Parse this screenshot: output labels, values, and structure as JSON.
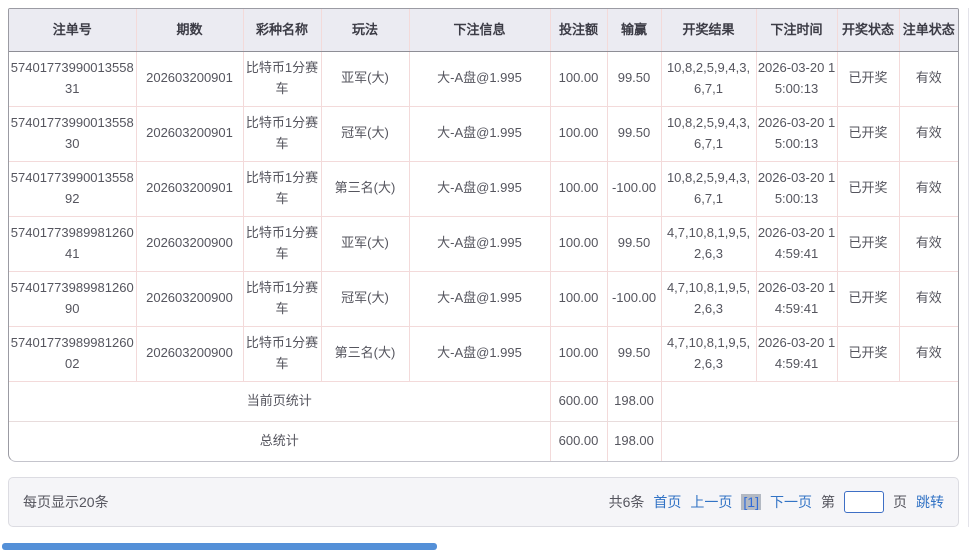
{
  "table": {
    "headers": [
      "注单号",
      "期数",
      "彩种名称",
      "玩法",
      "下注信息",
      "投注额",
      "输赢",
      "开奖结果",
      "下注时间",
      "开奖状态",
      "注单状态"
    ],
    "rows": [
      [
        "5740177399001355831",
        "202603200901",
        "比特币1分赛车",
        "亚军(大)",
        "大-A盘@1.995",
        "100.00",
        "99.50",
        "10,8,2,5,9,4,3,6,7,1",
        "2026-03-20 15:00:13",
        "已开奖",
        "有效"
      ],
      [
        "5740177399001355830",
        "202603200901",
        "比特币1分赛车",
        "冠军(大)",
        "大-A盘@1.995",
        "100.00",
        "99.50",
        "10,8,2,5,9,4,3,6,7,1",
        "2026-03-20 15:00:13",
        "已开奖",
        "有效"
      ],
      [
        "5740177399001355892",
        "202603200901",
        "比特币1分赛车",
        "第三名(大)",
        "大-A盘@1.995",
        "100.00",
        "-100.00",
        "10,8,2,5,9,4,3,6,7,1",
        "2026-03-20 15:00:13",
        "已开奖",
        "有效"
      ],
      [
        "5740177398998126041",
        "202603200900",
        "比特币1分赛车",
        "亚军(大)",
        "大-A盘@1.995",
        "100.00",
        "99.50",
        "4,7,10,8,1,9,5,2,6,3",
        "2026-03-20 14:59:41",
        "已开奖",
        "有效"
      ],
      [
        "5740177398998126090",
        "202603200900",
        "比特币1分赛车",
        "冠军(大)",
        "大-A盘@1.995",
        "100.00",
        "-100.00",
        "4,7,10,8,1,9,5,2,6,3",
        "2026-03-20 14:59:41",
        "已开奖",
        "有效"
      ],
      [
        "5740177398998126002",
        "202603200900",
        "比特币1分赛车",
        "第三名(大)",
        "大-A盘@1.995",
        "100.00",
        "99.50",
        "4,7,10,8,1,9,5,2,6,3",
        "2026-03-20 14:59:41",
        "已开奖",
        "有效"
      ]
    ],
    "page_summary": {
      "label": "当前页统计",
      "bet_amount": "600.00",
      "win_loss": "198.00"
    },
    "total_summary": {
      "label": "总统计",
      "bet_amount": "600.00",
      "win_loss": "198.00"
    }
  },
  "footer": {
    "per_page": "每页显示20条",
    "total_count": "共6条",
    "first_page": "首页",
    "prev_page": "上一页",
    "current_page": "[1]",
    "next_page": "下一页",
    "jump_prefix": "第",
    "jump_suffix": "页",
    "jump_button": "跳转",
    "jump_input_value": ""
  },
  "colors": {
    "header_bg": "#ebebf2",
    "cell_border_pink": "#f3dada",
    "link_blue": "#3273c5",
    "current_page_chip_bg": "#b3b9c3",
    "scrollbar_thumb_blue": "#5490d8",
    "footer_bg": "#f5f5f8"
  }
}
